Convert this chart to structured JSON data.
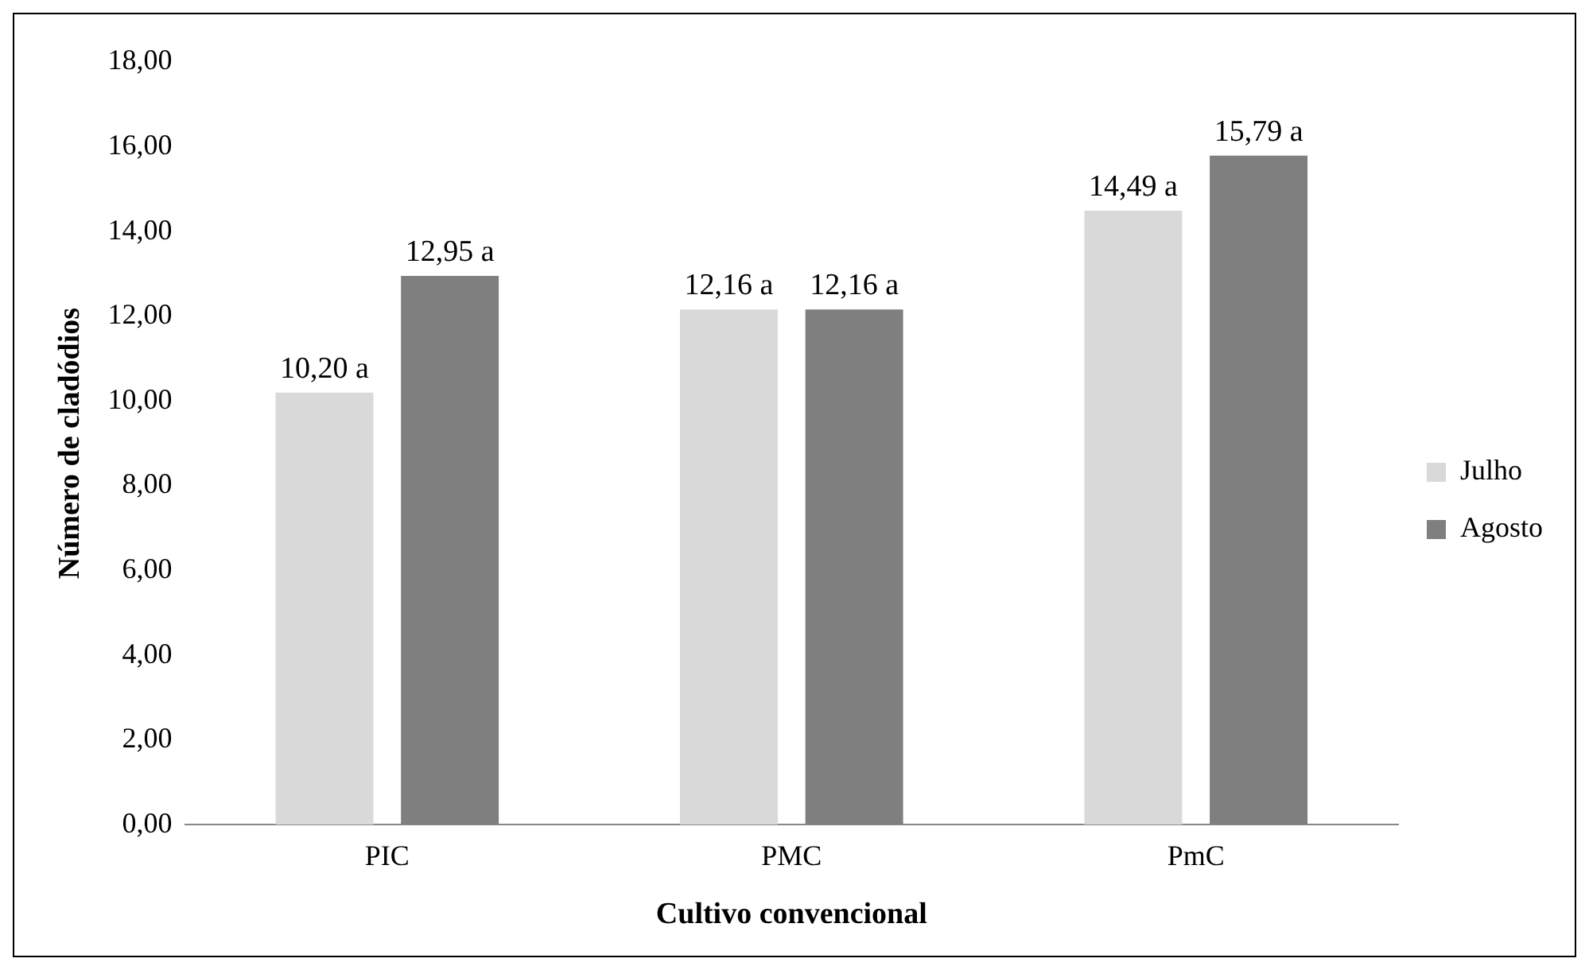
{
  "chart_data": {
    "type": "bar",
    "xlabel": "Cultivo convencional",
    "ylabel": "Número de cladódios",
    "categories": [
      "PIC",
      "PMC",
      "PmC"
    ],
    "series": [
      {
        "name": "Julho",
        "color": "#d9d9d9",
        "values": [
          10.2,
          12.16,
          14.49
        ],
        "value_labels": [
          "10,20 a",
          "12,16 a",
          "14,49 a"
        ]
      },
      {
        "name": "Agosto",
        "color": "#7f7f7f",
        "values": [
          12.95,
          12.16,
          15.79
        ],
        "value_labels": [
          "12,95 a",
          "12,16 a",
          "15,79 a"
        ]
      }
    ],
    "ylim": [
      0,
      18
    ],
    "yticks": [
      {
        "value": 0,
        "label": "0,00"
      },
      {
        "value": 2,
        "label": "2,00"
      },
      {
        "value": 4,
        "label": "4,00"
      },
      {
        "value": 6,
        "label": "6,00"
      },
      {
        "value": 8,
        "label": "8,00"
      },
      {
        "value": 10,
        "label": "10,00"
      },
      {
        "value": 12,
        "label": "12,00"
      },
      {
        "value": 14,
        "label": "14,00"
      },
      {
        "value": 16,
        "label": "16,00"
      },
      {
        "value": 18,
        "label": "18,00"
      }
    ],
    "grid": false,
    "legend": "right"
  }
}
